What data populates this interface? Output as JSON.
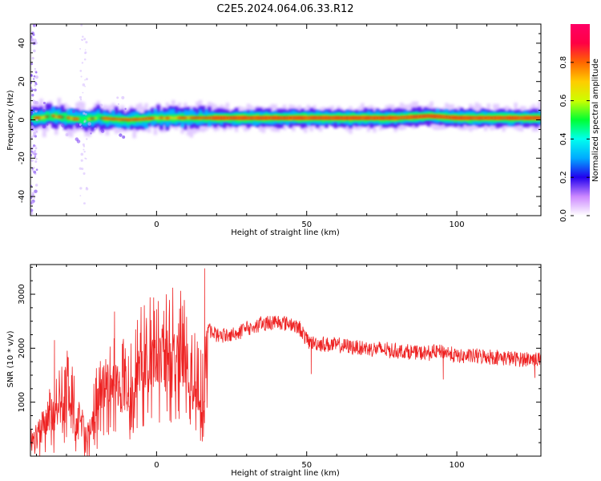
{
  "title": "C2E5.2024.064.06.33.R12",
  "colors": {
    "snr_line": "#ee2222",
    "spectral_band_core": "#cc1111",
    "spectral_band_edge": "#00ee88",
    "background": "#ffffff"
  },
  "chart_data": [
    {
      "type": "heatmap",
      "title": "C2E5.2024.064.06.33.R12",
      "xlabel": "Height of straight line (km)",
      "ylabel": "Frequency (Hz)",
      "xlim": [
        -42,
        128
      ],
      "ylim": [
        -50,
        50
      ],
      "xticks": [
        0,
        50,
        100
      ],
      "yticks": [
        -40,
        -20,
        0,
        20,
        40
      ],
      "colorbar": {
        "label": "Normalized spectral amplitude",
        "range": [
          0.0,
          1.0
        ],
        "ticks": [
          "0.0",
          "0.2",
          "0.4",
          "0.6",
          "0.8"
        ],
        "colormap": [
          "#ffffff",
          "#cc88ff",
          "#2200ee",
          "#00aaff",
          "#00ffee",
          "#00ff33",
          "#ccff00",
          "#ffcc00",
          "#ff6600",
          "#ff0044",
          "#ff0066"
        ]
      },
      "band": {
        "center_freq_hz": 1,
        "peak_freq_hz": [
          {
            "x": -40,
            "f": 1
          },
          {
            "x": -35,
            "f": 2
          },
          {
            "x": -30,
            "f": 1
          },
          {
            "x": -25,
            "f": 0
          },
          {
            "x": -20,
            "f": 1
          },
          {
            "x": -10,
            "f": 0
          },
          {
            "x": 0,
            "f": 1
          },
          {
            "x": 10,
            "f": 1
          },
          {
            "x": 20,
            "f": 1
          },
          {
            "x": 50,
            "f": 1
          },
          {
            "x": 80,
            "f": 1
          },
          {
            "x": 90,
            "f": 2
          },
          {
            "x": 100,
            "f": 1
          },
          {
            "x": 128,
            "f": 1
          }
        ]
      }
    },
    {
      "type": "line",
      "xlabel": "Height of straight line (km)",
      "ylabel": "SNR (10 * v/v)",
      "xlim": [
        -42,
        128
      ],
      "ylim": [
        0,
        3550
      ],
      "xticks": [
        0,
        50,
        100
      ],
      "yticks": [
        1000,
        2000,
        3000
      ],
      "series": [
        {
          "values_envelope": [
            {
              "x": -42,
              "y": 200
            },
            {
              "x": -38,
              "y": 600
            },
            {
              "x": -35,
              "y": 700
            },
            {
              "x": -32,
              "y": 900
            },
            {
              "x": -30,
              "y": 1100
            },
            {
              "x": -27,
              "y": 800
            },
            {
              "x": -24,
              "y": 500
            },
            {
              "x": -22,
              "y": 400
            },
            {
              "x": -20,
              "y": 900
            },
            {
              "x": -17,
              "y": 1300
            },
            {
              "x": -15,
              "y": 1300
            },
            {
              "x": -12,
              "y": 1300
            },
            {
              "x": -9,
              "y": 1200
            },
            {
              "x": -6,
              "y": 1600
            },
            {
              "x": -3,
              "y": 1700
            },
            {
              "x": 0,
              "y": 1750
            },
            {
              "x": 3,
              "y": 1850
            },
            {
              "x": 6,
              "y": 1900
            },
            {
              "x": 9,
              "y": 1800
            },
            {
              "x": 12,
              "y": 1400
            },
            {
              "x": 14,
              "y": 1200
            },
            {
              "x": 16,
              "y": 1000
            },
            {
              "x": 17,
              "y": 2350
            },
            {
              "x": 20,
              "y": 2250
            },
            {
              "x": 25,
              "y": 2250
            },
            {
              "x": 30,
              "y": 2350
            },
            {
              "x": 35,
              "y": 2450
            },
            {
              "x": 40,
              "y": 2500
            },
            {
              "x": 45,
              "y": 2450
            },
            {
              "x": 48,
              "y": 2350
            },
            {
              "x": 50,
              "y": 2150
            },
            {
              "x": 52,
              "y": 2100
            },
            {
              "x": 60,
              "y": 2050
            },
            {
              "x": 70,
              "y": 2000
            },
            {
              "x": 80,
              "y": 1950
            },
            {
              "x": 90,
              "y": 1900
            },
            {
              "x": 95,
              "y": 1950
            },
            {
              "x": 100,
              "y": 1850
            },
            {
              "x": 110,
              "y": 1850
            },
            {
              "x": 120,
              "y": 1800
            },
            {
              "x": 128,
              "y": 1800
            }
          ],
          "spikes": [
            {
              "x": 16,
              "y": 3480
            },
            {
              "x": 15.8,
              "y": 750
            },
            {
              "x": 51.5,
              "y": 1520
            },
            {
              "x": 95.5,
              "y": 1420
            },
            {
              "x": 126,
              "y": 1450
            },
            {
              "x": -34,
              "y": 2150
            },
            {
              "x": -14,
              "y": 2680
            },
            {
              "x": 10,
              "y": 2580
            }
          ]
        }
      ]
    }
  ]
}
